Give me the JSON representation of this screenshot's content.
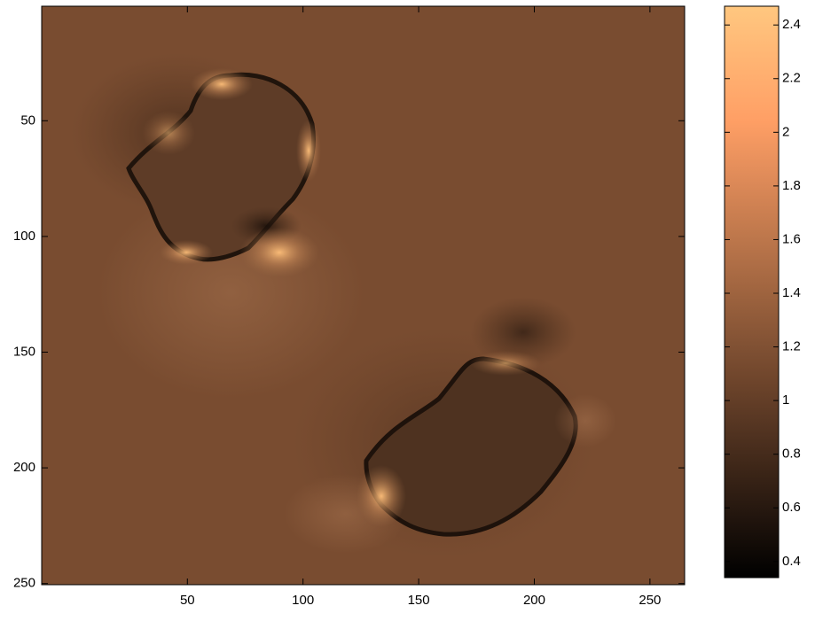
{
  "chart_data": {
    "type": "image",
    "colormap": "copper",
    "xlim": [
      -13,
      265
    ],
    "ylim": [
      0.5,
      250.5
    ],
    "y_reversed": true,
    "xticks": [
      50,
      100,
      150,
      200,
      250
    ],
    "yticks": [
      50,
      100,
      150,
      200,
      250
    ],
    "background_value": 1.15,
    "colorbar": {
      "clim": [
        0.34,
        2.47
      ],
      "ticks": [
        0.4,
        0.6,
        0.8,
        1,
        1.2,
        1.4,
        1.6,
        1.8,
        2,
        2.2,
        2.4
      ]
    }
  }
}
